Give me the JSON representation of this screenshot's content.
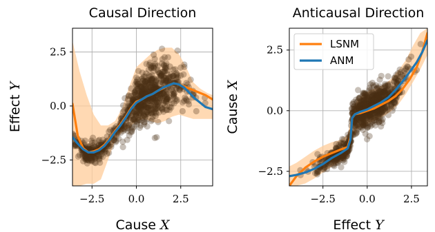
{
  "chart_data": [
    {
      "type": "scatter",
      "title": "Causal Direction",
      "xlabel_text": "Cause",
      "xlabel_var": "X",
      "ylabel_text": "Effect",
      "ylabel_var": "Y",
      "xlim": [
        -3.6,
        4.3
      ],
      "ylim": [
        -3.7,
        3.6
      ],
      "xticks": [
        -2.5,
        0.0,
        2.5
      ],
      "xtick_labels": [
        "−2.5",
        "0.0",
        "2.5"
      ],
      "yticks": [
        -2.5,
        0.0,
        2.5
      ],
      "ytick_labels": [
        "−2.5",
        "0.0",
        "2.5"
      ],
      "grid": true,
      "series": [
        {
          "name": "LSNM",
          "color": "#ff7f0e",
          "x": [
            -3.6,
            -3.3,
            -3.0,
            -2.7,
            -2.4,
            -2.1,
            -1.8,
            -1.5,
            -1.2,
            -0.9,
            -0.6,
            -0.3,
            0.0,
            0.3,
            0.6,
            0.9,
            1.2,
            1.5,
            1.8,
            2.1,
            2.4,
            2.7,
            3.0,
            3.3,
            3.6,
            3.9,
            4.3
          ],
          "y": [
            0.1,
            -1.4,
            -1.95,
            -2.15,
            -2.1,
            -2.0,
            -1.8,
            -1.5,
            -1.15,
            -0.85,
            -0.5,
            -0.1,
            0.2,
            0.3,
            0.45,
            0.55,
            0.7,
            0.82,
            0.95,
            1.05,
            1.0,
            0.9,
            0.8,
            0.7,
            0.6,
            0.5,
            0.3
          ]
        },
        {
          "name": "ANM",
          "color": "#1f77b4",
          "x": [
            -3.6,
            -3.3,
            -3.0,
            -2.7,
            -2.4,
            -2.1,
            -1.8,
            -1.5,
            -1.2,
            -0.9,
            -0.6,
            -0.3,
            0.0,
            0.3,
            0.6,
            0.9,
            1.2,
            1.5,
            1.8,
            2.1,
            2.4,
            2.7,
            3.0,
            3.3,
            3.6,
            3.9,
            4.3
          ],
          "y": [
            -1.45,
            -1.75,
            -2.0,
            -2.15,
            -2.15,
            -2.05,
            -1.85,
            -1.55,
            -1.2,
            -0.9,
            -0.55,
            -0.15,
            0.15,
            0.3,
            0.45,
            0.55,
            0.7,
            0.85,
            0.95,
            1.05,
            1.0,
            0.85,
            0.6,
            0.35,
            0.15,
            -0.05,
            -0.15
          ]
        }
      ],
      "band": {
        "color": "#ffcc99",
        "x": [
          -3.6,
          -3.2,
          -2.8,
          -2.4,
          -2.0,
          -1.6,
          -1.2,
          -0.8,
          -0.4,
          0.0,
          0.4,
          0.8,
          1.2,
          1.6,
          2.0,
          2.4,
          2.8,
          3.2,
          3.6,
          4.0,
          4.3
        ],
        "upper": [
          3.0,
          1.6,
          0.5,
          -0.4,
          -0.9,
          -0.9,
          -0.7,
          -0.1,
          0.9,
          1.8,
          2.1,
          2.4,
          2.6,
          2.7,
          2.7,
          2.4,
          1.8,
          1.1,
          0.8,
          0.6,
          0.5
        ],
        "lower": [
          -3.7,
          -3.7,
          -3.6,
          -3.6,
          -3.4,
          -2.5,
          -1.6,
          -1.2,
          -1.0,
          -0.7,
          -0.6,
          -0.7,
          -0.8,
          -0.7,
          -0.5,
          -0.4,
          -0.5,
          -0.6,
          -0.6,
          -0.6,
          -0.6
        ]
      },
      "scatter_color": "#4a2e14"
    },
    {
      "type": "scatter",
      "title": "Anticausal Direction",
      "xlabel_text": "Effect",
      "xlabel_var": "Y",
      "ylabel_text": "Cause",
      "ylabel_var": "X",
      "xlim": [
        -4.4,
        3.4
      ],
      "ylim": [
        -3.1,
        3.4
      ],
      "xticks": [
        -2.5,
        0.0,
        2.5
      ],
      "xtick_labels": [
        "−2.5",
        "0.0",
        "2.5"
      ],
      "yticks": [
        -2.5,
        0.0,
        2.5
      ],
      "ytick_labels": [
        "−2.5",
        "0.0",
        "2.5"
      ],
      "grid": true,
      "legend": {
        "position": "top-left",
        "entries": [
          "LSNM",
          "ANM"
        ]
      },
      "series": [
        {
          "name": "LSNM",
          "color": "#ff7f0e",
          "x": [
            -4.4,
            -4.0,
            -3.5,
            -3.0,
            -2.5,
            -2.0,
            -1.5,
            -1.1,
            -0.95,
            -0.85,
            -0.7,
            -0.4,
            0.0,
            0.4,
            0.8,
            1.2,
            1.6,
            2.0,
            2.4,
            2.8,
            3.1,
            3.4
          ],
          "y": [
            -3.1,
            -2.7,
            -2.35,
            -2.1,
            -1.9,
            -1.75,
            -1.6,
            -1.5,
            -1.1,
            -0.3,
            -0.15,
            -0.1,
            0.0,
            0.1,
            0.25,
            0.4,
            0.6,
            0.9,
            1.3,
            1.8,
            2.4,
            3.2
          ]
        },
        {
          "name": "ANM",
          "color": "#1f77b4",
          "x": [
            -4.4,
            -4.0,
            -3.5,
            -3.0,
            -2.5,
            -2.0,
            -1.5,
            -1.1,
            -0.95,
            -0.85,
            -0.7,
            -0.4,
            0.0,
            0.4,
            0.8,
            1.2,
            1.6,
            2.0,
            2.4,
            2.8,
            3.1,
            3.4
          ],
          "y": [
            -2.7,
            -2.65,
            -2.55,
            -2.4,
            -2.2,
            -1.95,
            -1.75,
            -1.55,
            -1.2,
            -0.3,
            -0.15,
            -0.05,
            0.05,
            0.2,
            0.35,
            0.55,
            0.85,
            1.2,
            1.6,
            2.0,
            2.4,
            2.9
          ]
        }
      ],
      "band": {
        "color": "#ffcc99",
        "x": [
          -4.4,
          -4.0,
          -3.5,
          -3.0,
          -2.5,
          -2.0,
          -1.5,
          -1.1,
          -0.9,
          -0.6,
          -0.2,
          0.2,
          0.6,
          1.0,
          1.4,
          1.8,
          2.2,
          2.6,
          3.0,
          3.4
        ],
        "upper": [
          -2.3,
          -2.15,
          -1.9,
          -1.65,
          -1.45,
          -1.3,
          -1.2,
          -1.0,
          -0.2,
          0.4,
          0.7,
          0.85,
          0.95,
          1.1,
          1.35,
          1.7,
          2.1,
          2.7,
          3.2,
          3.4
        ],
        "lower": [
          -3.1,
          -3.1,
          -3.0,
          -2.8,
          -2.55,
          -2.3,
          -2.1,
          -1.9,
          -1.3,
          -0.8,
          -0.6,
          -0.5,
          -0.35,
          -0.2,
          0.0,
          0.3,
          0.7,
          1.2,
          1.7,
          2.3
        ]
      },
      "scatter_color": "#4a2e14"
    }
  ]
}
